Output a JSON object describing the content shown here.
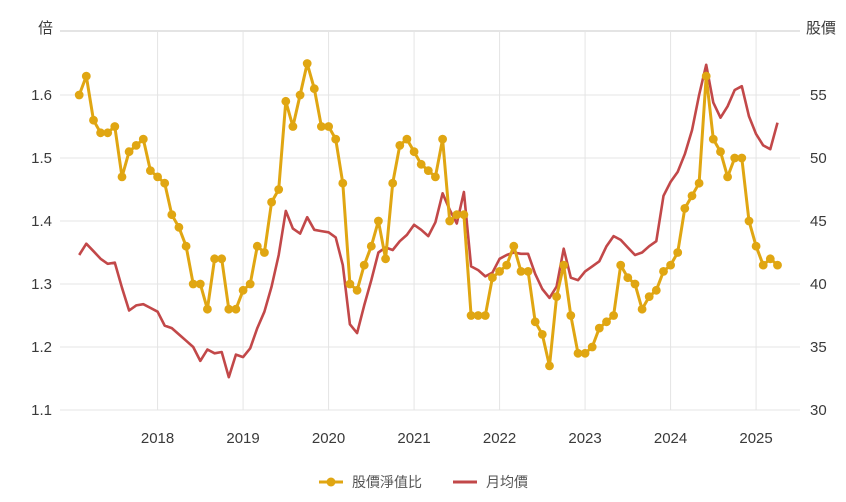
{
  "chart_data": {
    "type": "line",
    "title": "",
    "left_axis": {
      "label": "倍",
      "tick_labels": [
        "1.6",
        "1.5",
        "1.4",
        "1.3",
        "1.2",
        "1.1"
      ],
      "tick_values": [
        1.6,
        1.5,
        1.4,
        1.3,
        1.2,
        1.1
      ],
      "range": [
        1.1,
        1.7
      ]
    },
    "right_axis": {
      "label": "股價",
      "tick_labels": [
        "55",
        "50",
        "45",
        "40",
        "35",
        "30"
      ],
      "tick_values": [
        55,
        50,
        45,
        40,
        35,
        30
      ],
      "range": [
        30,
        60
      ]
    },
    "x_axis": {
      "tick_labels": [
        "2018",
        "2019",
        "2020",
        "2021",
        "2022",
        "2023",
        "2024",
        "2025"
      ],
      "start_month": "2017-02",
      "end_month": "2025-04"
    },
    "grid": "on",
    "legend_position": "bottom",
    "series": [
      {
        "name": "股價淨值比",
        "axis": "left",
        "color": "#E0A612",
        "style": "line+markers",
        "values": [
          1.6,
          1.63,
          1.56,
          1.54,
          1.54,
          1.55,
          1.47,
          1.51,
          1.52,
          1.53,
          1.48,
          1.47,
          1.46,
          1.41,
          1.39,
          1.36,
          1.3,
          1.3,
          1.26,
          1.34,
          1.34,
          1.26,
          1.26,
          1.29,
          1.3,
          1.36,
          1.35,
          1.43,
          1.45,
          1.59,
          1.55,
          1.6,
          1.65,
          1.61,
          1.55,
          1.55,
          1.53,
          1.46,
          1.3,
          1.29,
          1.33,
          1.36,
          1.4,
          1.34,
          1.46,
          1.52,
          1.53,
          1.51,
          1.49,
          1.48,
          1.47,
          1.53,
          1.4,
          1.41,
          1.41,
          1.25,
          1.25,
          1.25,
          1.31,
          1.32,
          1.33,
          1.36,
          1.32,
          1.32,
          1.24,
          1.22,
          1.17,
          1.28,
          1.33,
          1.25,
          1.19,
          1.19,
          1.2,
          1.23,
          1.24,
          1.25,
          1.33,
          1.31,
          1.3,
          1.26,
          1.28,
          1.29,
          1.32,
          1.33,
          1.35,
          1.42,
          1.44,
          1.46,
          1.63,
          1.53,
          1.51,
          1.47,
          1.5,
          1.5,
          1.4,
          1.36,
          1.33,
          1.34,
          1.33
        ]
      },
      {
        "name": "月均價",
        "axis": "right",
        "color": "#C24849",
        "style": "line",
        "values": [
          42.3,
          43.2,
          42.6,
          42.0,
          41.6,
          41.7,
          39.7,
          37.9,
          38.3,
          38.4,
          38.1,
          37.8,
          36.7,
          36.5,
          36.0,
          35.5,
          35.0,
          33.9,
          34.8,
          34.5,
          34.6,
          32.6,
          34.4,
          34.2,
          34.9,
          36.5,
          37.8,
          39.8,
          42.3,
          45.8,
          44.4,
          44.0,
          45.3,
          44.3,
          44.2,
          44.1,
          43.7,
          41.5,
          36.8,
          36.1,
          38.3,
          40.3,
          42.5,
          42.9,
          42.7,
          43.4,
          43.9,
          44.7,
          44.3,
          43.8,
          44.9,
          47.2,
          45.9,
          44.8,
          47.3,
          41.4,
          41.1,
          40.6,
          40.9,
          42.0,
          42.3,
          42.5,
          42.4,
          42.4,
          40.8,
          39.6,
          38.9,
          39.8,
          42.8,
          40.5,
          40.3,
          41.0,
          41.4,
          41.8,
          43.0,
          43.8,
          43.5,
          42.9,
          42.3,
          42.5,
          43.0,
          43.4,
          47.0,
          48.1,
          48.9,
          50.3,
          52.2,
          55.0,
          57.4,
          54.4,
          53.2,
          54.1,
          55.4,
          55.7,
          53.3,
          51.9,
          51.0,
          50.7,
          52.8
        ]
      }
    ]
  },
  "legend": {
    "items": [
      {
        "label": "股價淨值比",
        "marker": "line-dot-icon"
      },
      {
        "label": "月均價",
        "marker": "line-icon"
      }
    ]
  }
}
